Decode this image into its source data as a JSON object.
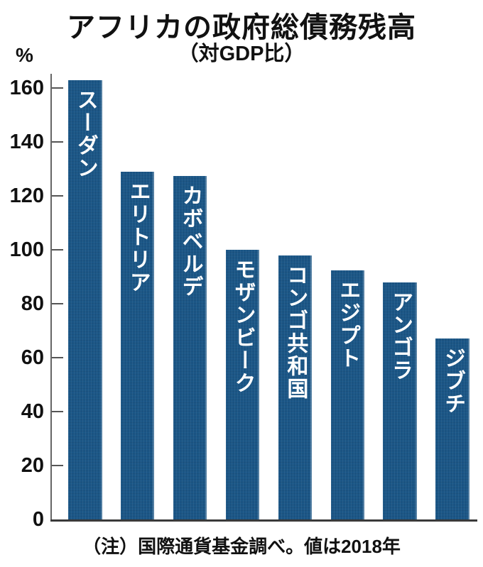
{
  "chart": {
    "title": "アフリカの政府総債務残高",
    "subtitle": "（対GDP比）",
    "unit": "%",
    "note": "（注）国際通貨基金調べ。値は2018年"
  },
  "chart_data": {
    "type": "bar",
    "title": "アフリカの政府総債務残高（対GDP比）",
    "categories": [
      "スーダン",
      "エリトリア",
      "カボベルデ",
      "モザンビーク",
      "コンゴ共和国",
      "エジプト",
      "アンゴラ",
      "ジブチ"
    ],
    "values": [
      163,
      129,
      127.5,
      100,
      98,
      92.5,
      88,
      67
    ],
    "xlabel": "",
    "ylabel": "%",
    "ylim": [
      0,
      160
    ],
    "ytick_step": 20,
    "grid": "off",
    "legend": "none",
    "bar_color": "#1b5686",
    "bar_label_color": "#ffffff",
    "note": "（注）国際通貨基金調べ。値は2018年"
  }
}
